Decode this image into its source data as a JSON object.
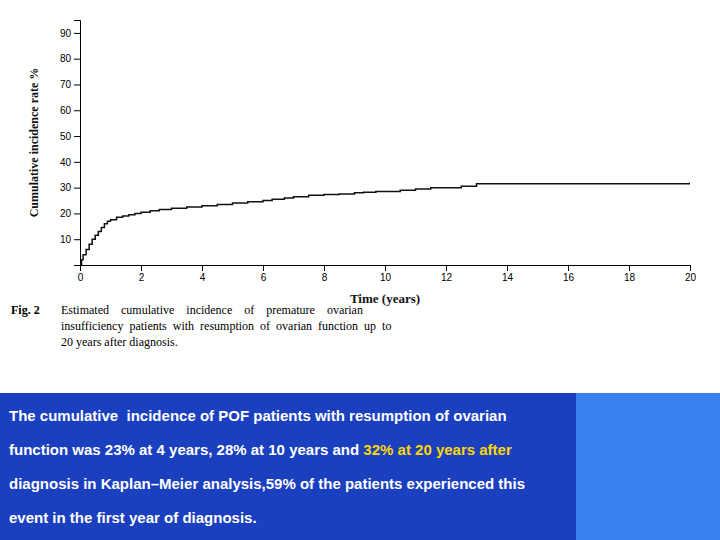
{
  "chart_data": {
    "type": "line",
    "line_style": "step",
    "color": "#111111",
    "xlabel": "Time (years)",
    "ylabel": "Cumulative incidence rate %",
    "xlim": [
      0,
      20
    ],
    "ylim": [
      0,
      95
    ],
    "xticks": [
      0,
      2,
      4,
      6,
      8,
      10,
      12,
      14,
      16,
      18,
      20
    ],
    "yticks": [
      10,
      20,
      30,
      40,
      50,
      60,
      70,
      80,
      90
    ],
    "grid": false,
    "x": [
      0,
      0.05,
      0.1,
      0.2,
      0.3,
      0.4,
      0.5,
      0.6,
      0.7,
      0.8,
      0.9,
      1.0,
      1.2,
      1.4,
      1.6,
      1.8,
      2.0,
      2.3,
      2.6,
      3.0,
      3.5,
      4.0,
      4.5,
      5.0,
      5.5,
      6.0,
      6.3,
      6.7,
      7.0,
      7.5,
      8.0,
      8.5,
      9.0,
      9.3,
      9.7,
      10.0,
      10.5,
      11.0,
      11.5,
      12.0,
      12.5,
      13.0,
      14.0,
      15.0,
      16.0,
      17.0,
      18.0,
      19.0,
      20.0
    ],
    "values": [
      0,
      2,
      4,
      6,
      8,
      10,
      11.5,
      13,
      14.5,
      16,
      17,
      17.5,
      18.5,
      19,
      19.5,
      20,
      20.5,
      21,
      21.5,
      22,
      22.5,
      23,
      23.5,
      24,
      24.5,
      25,
      25.5,
      26,
      26.5,
      27,
      27.3,
      27.5,
      28,
      28.2,
      28.5,
      28.5,
      29,
      29.5,
      30,
      30,
      30.5,
      31.5,
      31.5,
      31.5,
      31.5,
      31.5,
      31.5,
      31.5,
      32
    ],
    "annotations": [
      {
        "text": "Fig. 2",
        "color": "#000000"
      },
      {
        "text": "Estimated    cumulative    incidence    of    premature    ovarian",
        "color": "#000000"
      },
      {
        "text": "insufficiency  patients  with  resumption  of  ovarian  function  up  to",
        "color": "#000000"
      },
      {
        "text": "20 years after diagnosis.",
        "color": "#000000"
      },
      {
        "text": "The cumulative  incidence of POF patients with resumption of ovarian",
        "color": "#ffffff"
      },
      {
        "text": "function was 23% at 4 years, 28% at 10 years and ",
        "color": "#ffffff"
      },
      {
        "text": "32% at 20 years after",
        "color": "#ffd700"
      },
      {
        "text": "diagnosis in Kaplan–Meier analysis,59% of the patients experienced this",
        "color": "#ffffff"
      },
      {
        "text": "event in the first year of diagnosis.",
        "color": "#ffffff"
      }
    ]
  }
}
